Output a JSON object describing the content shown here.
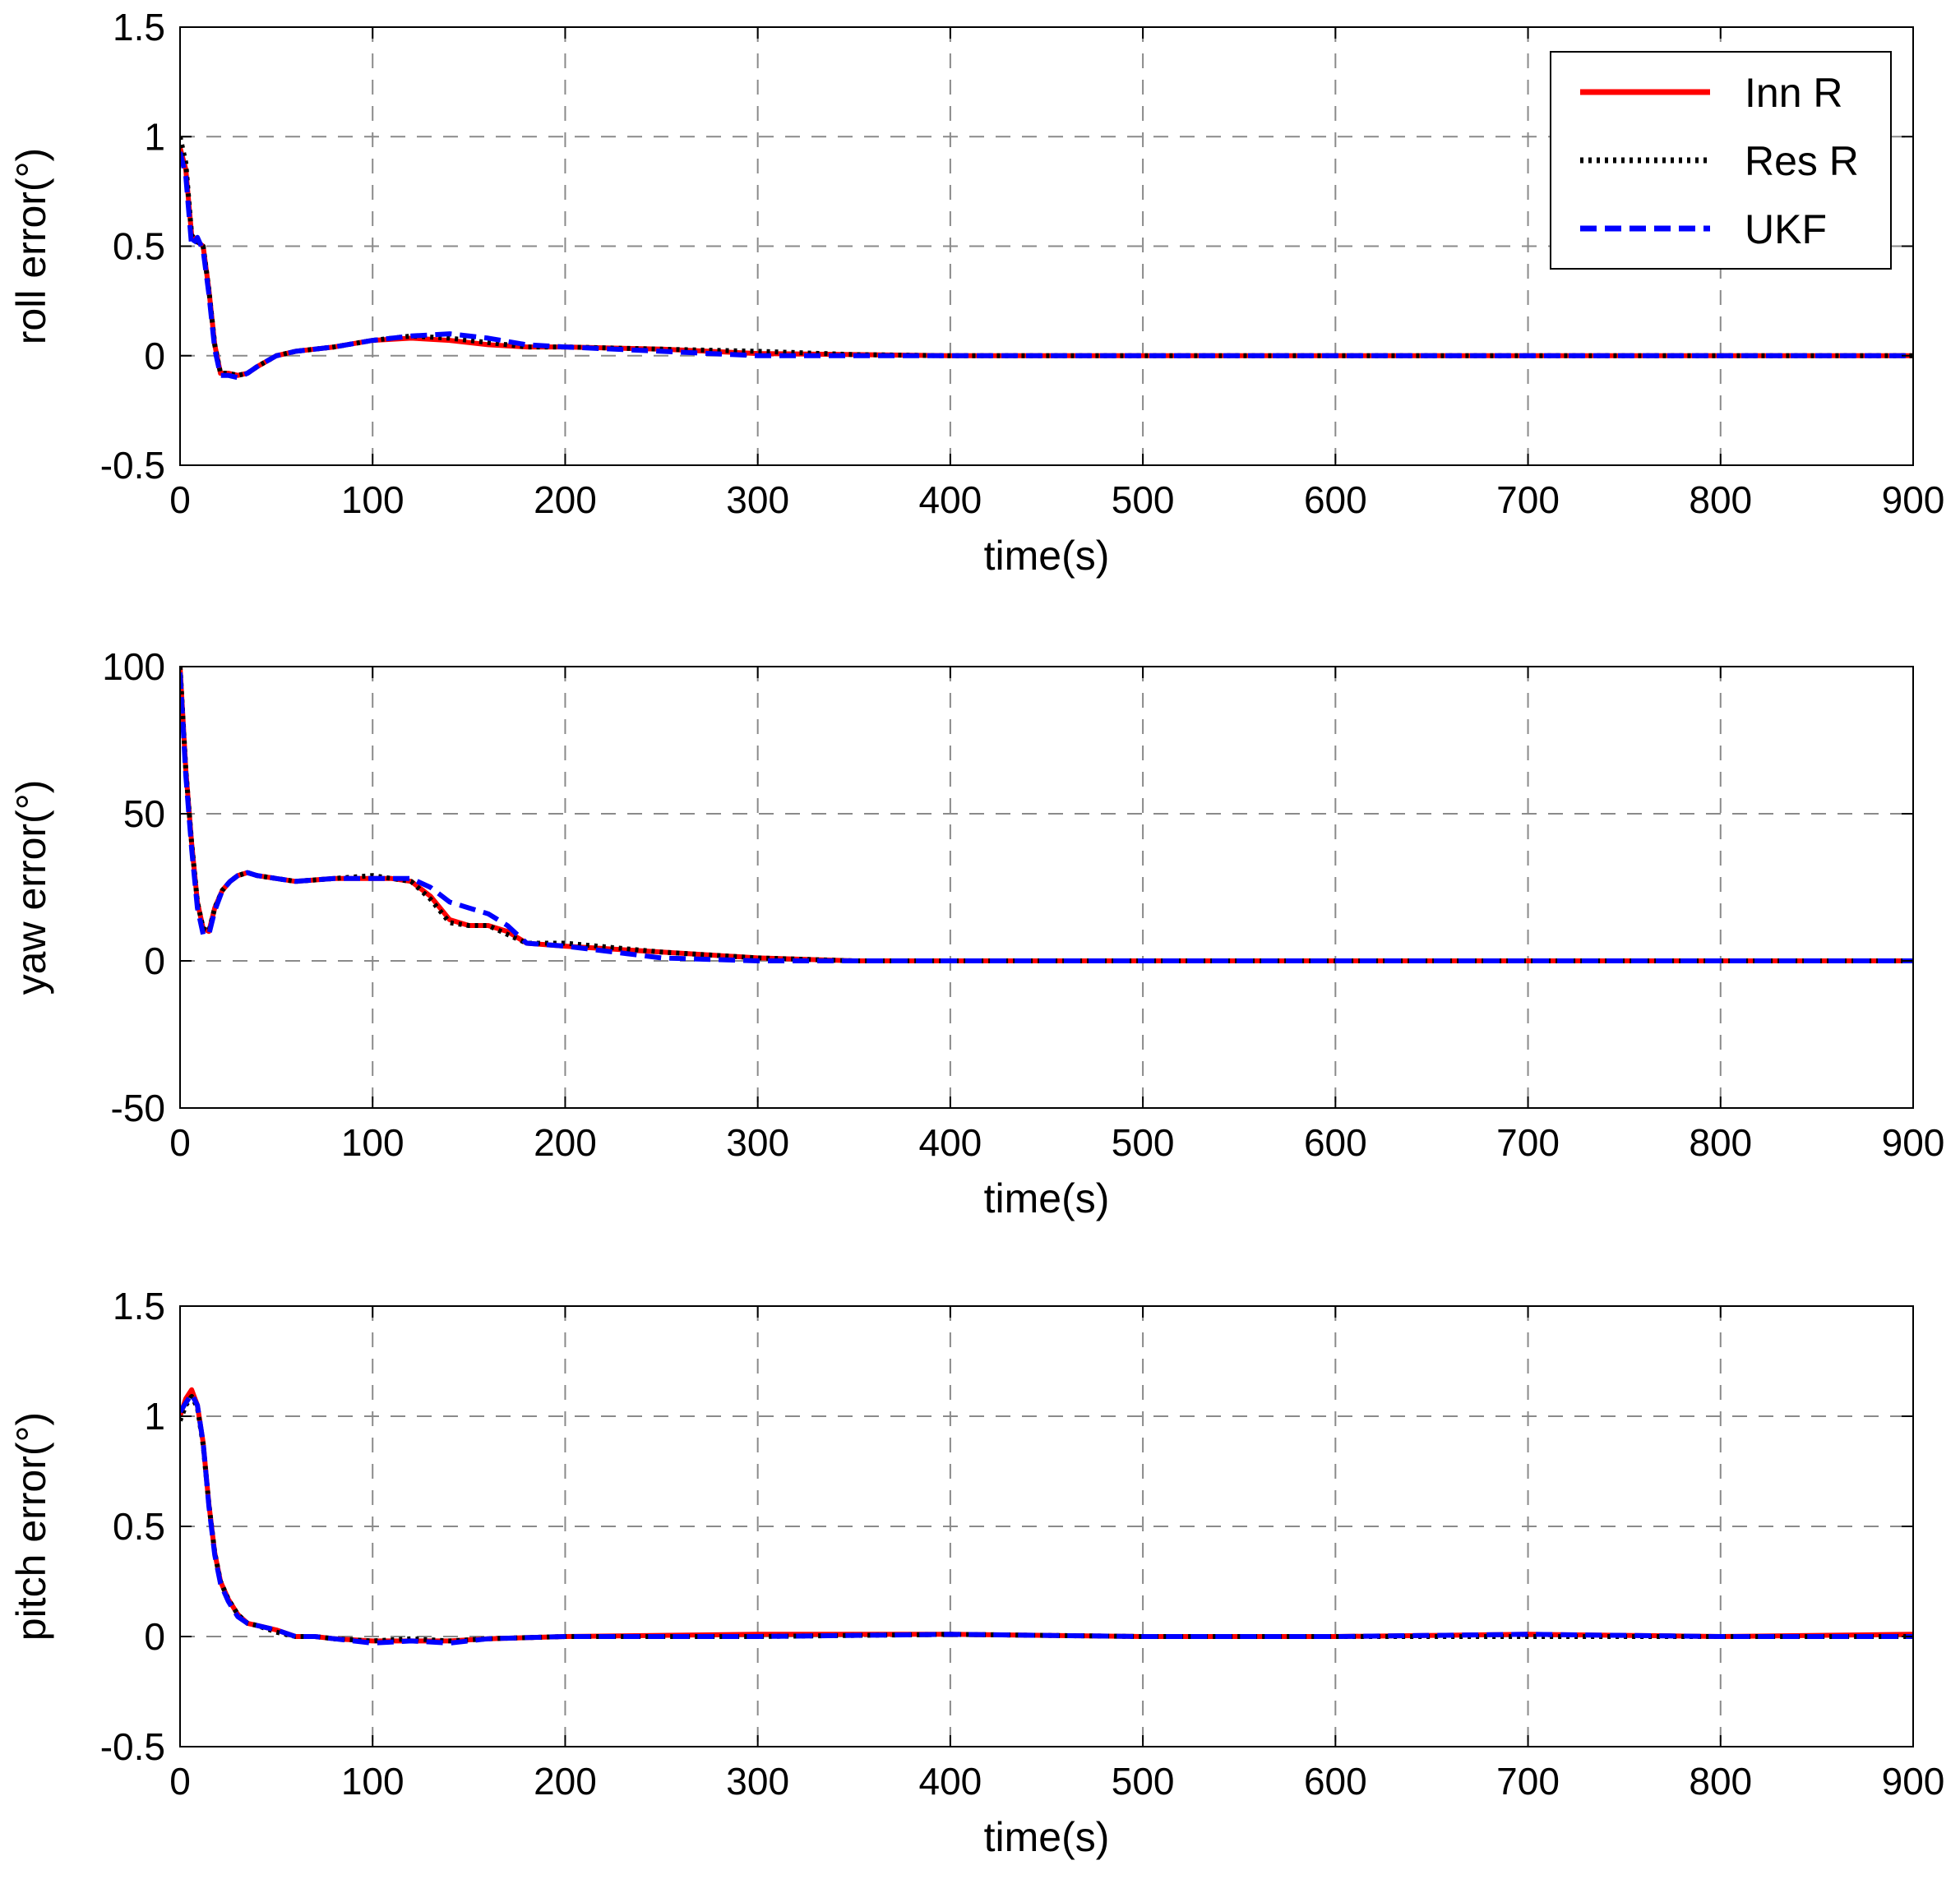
{
  "chart_data": [
    {
      "type": "line",
      "xlabel": "time(s)",
      "ylabel": "roll error(°)",
      "xlim": [
        0,
        900
      ],
      "ylim": [
        -0.5,
        1.5
      ],
      "xticks": [
        "0",
        "100",
        "200",
        "300",
        "400",
        "500",
        "600",
        "700",
        "800",
        "900"
      ],
      "yticks": [
        "-0.5",
        "0",
        "0.5",
        "1",
        "1.5"
      ],
      "grid": true,
      "legend_position": "top-right",
      "legend": [
        {
          "label": "Inn R",
          "color": "#ff0000",
          "style": "solid"
        },
        {
          "label": "Res R",
          "color": "#000000",
          "style": "dotted"
        },
        {
          "label": "UKF",
          "color": "#0000ff",
          "style": "dashed"
        }
      ],
      "series": [
        {
          "name": "Inn R",
          "color": "#ff0000",
          "style": "solid",
          "x": [
            0,
            3,
            6,
            9,
            12,
            15,
            18,
            21,
            25,
            30,
            35,
            40,
            50,
            60,
            80,
            100,
            120,
            140,
            160,
            180,
            200,
            250,
            300,
            350,
            400,
            900
          ],
          "y": [
            0.95,
            0.85,
            0.55,
            0.52,
            0.5,
            0.3,
            0.05,
            -0.08,
            -0.08,
            -0.09,
            -0.08,
            -0.05,
            0.0,
            0.02,
            0.04,
            0.07,
            0.08,
            0.07,
            0.05,
            0.04,
            0.04,
            0.03,
            0.01,
            0.005,
            0.0,
            0.0
          ]
        },
        {
          "name": "Res R",
          "color": "#000000",
          "style": "dotted",
          "x": [
            0,
            3,
            6,
            9,
            12,
            15,
            18,
            21,
            25,
            30,
            35,
            40,
            50,
            60,
            80,
            100,
            120,
            140,
            160,
            180,
            200,
            250,
            300,
            350,
            400,
            900
          ],
          "y": [
            1.0,
            0.88,
            0.55,
            0.52,
            0.5,
            0.3,
            0.05,
            -0.08,
            -0.08,
            -0.09,
            -0.08,
            -0.05,
            0.0,
            0.02,
            0.04,
            0.07,
            0.09,
            0.08,
            0.06,
            0.04,
            0.04,
            0.03,
            0.02,
            0.005,
            0.0,
            0.0
          ]
        },
        {
          "name": "UKF",
          "color": "#0000ff",
          "style": "dashed",
          "x": [
            0,
            3,
            6,
            9,
            12,
            15,
            18,
            21,
            25,
            30,
            35,
            40,
            50,
            60,
            80,
            100,
            120,
            140,
            160,
            180,
            200,
            250,
            300,
            350,
            400,
            900
          ],
          "y": [
            0.93,
            0.82,
            0.5,
            0.54,
            0.48,
            0.28,
            0.03,
            -0.09,
            -0.09,
            -0.1,
            -0.08,
            -0.05,
            0.0,
            0.02,
            0.04,
            0.07,
            0.09,
            0.1,
            0.08,
            0.05,
            0.04,
            0.02,
            0.0,
            0.0,
            0.0,
            0.0
          ]
        }
      ]
    },
    {
      "type": "line",
      "xlabel": "time(s)",
      "ylabel": "yaw error(°)",
      "xlim": [
        0,
        900
      ],
      "ylim": [
        -50,
        100
      ],
      "xticks": [
        "0",
        "100",
        "200",
        "300",
        "400",
        "500",
        "600",
        "700",
        "800",
        "900"
      ],
      "yticks": [
        "-50",
        "0",
        "50",
        "100"
      ],
      "grid": true,
      "series": [
        {
          "name": "Inn R",
          "color": "#ff0000",
          "style": "solid",
          "x": [
            0,
            3,
            6,
            9,
            12,
            15,
            18,
            22,
            26,
            30,
            35,
            40,
            50,
            60,
            80,
            100,
            110,
            120,
            130,
            140,
            150,
            160,
            170,
            180,
            200,
            250,
            300,
            350,
            400,
            900
          ],
          "y": [
            100,
            65,
            40,
            20,
            11,
            10,
            18,
            24,
            27,
            29,
            30,
            29,
            28,
            27,
            28,
            28,
            28,
            27,
            22,
            14,
            12,
            12,
            10,
            6,
            5,
            3,
            1,
            0,
            0,
            0
          ]
        },
        {
          "name": "Res R",
          "color": "#000000",
          "style": "dotted",
          "x": [
            0,
            3,
            6,
            9,
            12,
            15,
            18,
            22,
            26,
            30,
            35,
            40,
            50,
            60,
            80,
            100,
            110,
            120,
            130,
            140,
            150,
            160,
            170,
            180,
            200,
            250,
            300,
            350,
            400,
            900
          ],
          "y": [
            100,
            65,
            40,
            20,
            11,
            10,
            18,
            24,
            27,
            29,
            30,
            29,
            28,
            27,
            28,
            29,
            28,
            27,
            21,
            13,
            12,
            12,
            9,
            6,
            6,
            3,
            1,
            0,
            0,
            0
          ]
        },
        {
          "name": "UKF",
          "color": "#0000ff",
          "style": "dashed",
          "x": [
            0,
            3,
            6,
            9,
            12,
            15,
            18,
            22,
            26,
            30,
            35,
            40,
            50,
            60,
            80,
            100,
            110,
            120,
            130,
            140,
            150,
            160,
            170,
            180,
            200,
            250,
            300,
            350,
            400,
            900
          ],
          "y": [
            98,
            63,
            38,
            18,
            9,
            9,
            17,
            24,
            27,
            29,
            30,
            29,
            28,
            27,
            28,
            28,
            28,
            28,
            25,
            20,
            18,
            16,
            12,
            6,
            5,
            1,
            0,
            0,
            0,
            0
          ]
        }
      ]
    },
    {
      "type": "line",
      "xlabel": "time(s)",
      "ylabel": "pitch error(°)",
      "xlim": [
        0,
        900
      ],
      "ylim": [
        -0.5,
        1.5
      ],
      "xticks": [
        "0",
        "100",
        "200",
        "300",
        "400",
        "500",
        "600",
        "700",
        "800",
        "900"
      ],
      "yticks": [
        "-0.5",
        "0",
        "0.5",
        "1",
        "1.5"
      ],
      "grid": true,
      "series": [
        {
          "name": "Inn R",
          "color": "#ff0000",
          "style": "solid",
          "x": [
            0,
            3,
            6,
            9,
            12,
            15,
            18,
            21,
            25,
            30,
            35,
            40,
            50,
            60,
            70,
            80,
            100,
            120,
            140,
            160,
            200,
            300,
            400,
            500,
            600,
            700,
            800,
            900
          ],
          "y": [
            1.0,
            1.08,
            1.12,
            1.05,
            0.88,
            0.6,
            0.38,
            0.25,
            0.17,
            0.1,
            0.06,
            0.05,
            0.03,
            0.0,
            0.0,
            -0.01,
            -0.02,
            -0.02,
            -0.02,
            -0.01,
            0.0,
            0.01,
            0.01,
            0.0,
            0.0,
            0.01,
            0.0,
            0.01
          ]
        },
        {
          "name": "Res R",
          "color": "#000000",
          "style": "dotted",
          "x": [
            0,
            3,
            6,
            9,
            12,
            15,
            18,
            21,
            25,
            30,
            35,
            40,
            50,
            60,
            70,
            80,
            100,
            120,
            140,
            160,
            200,
            300,
            400,
            500,
            600,
            700,
            800,
            900
          ],
          "y": [
            0.98,
            1.05,
            1.09,
            1.04,
            0.87,
            0.6,
            0.38,
            0.25,
            0.17,
            0.1,
            0.06,
            0.05,
            0.02,
            0.0,
            0.0,
            -0.01,
            -0.02,
            -0.01,
            -0.02,
            -0.01,
            0.0,
            0.0,
            0.01,
            0.0,
            0.0,
            0.0,
            0.0,
            0.0
          ]
        },
        {
          "name": "UKF",
          "color": "#0000ff",
          "style": "dashed",
          "x": [
            0,
            3,
            6,
            9,
            12,
            15,
            18,
            21,
            25,
            30,
            35,
            40,
            50,
            60,
            70,
            80,
            100,
            120,
            140,
            160,
            200,
            300,
            400,
            500,
            600,
            700,
            800,
            900
          ],
          "y": [
            1.02,
            1.06,
            1.1,
            1.05,
            0.88,
            0.59,
            0.37,
            0.24,
            0.16,
            0.09,
            0.06,
            0.05,
            0.03,
            0.0,
            0.0,
            -0.01,
            -0.03,
            -0.02,
            -0.03,
            -0.01,
            0.0,
            0.0,
            0.01,
            0.0,
            0.0,
            0.01,
            0.0,
            0.0
          ]
        }
      ]
    }
  ]
}
